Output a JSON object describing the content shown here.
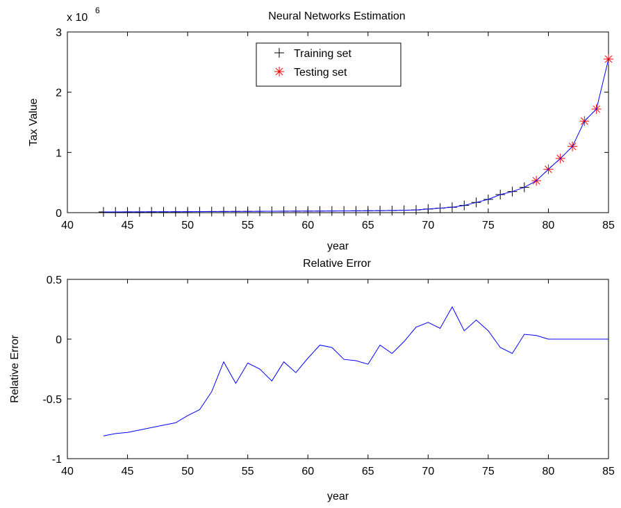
{
  "chart_data": [
    {
      "type": "line",
      "title": "Neural Networks Estimation",
      "xlabel": "year",
      "ylabel": "Tax Value",
      "y_exponent_label": "x 10",
      "y_exponent_power": "6",
      "xlim": [
        40,
        85
      ],
      "ylim": [
        0,
        3
      ],
      "xticks": [
        "40",
        "45",
        "50",
        "55",
        "60",
        "65",
        "70",
        "75",
        "80",
        "85"
      ],
      "yticks": [
        "0",
        "1",
        "2",
        "3"
      ],
      "legend": {
        "placement": "top-center",
        "entries": [
          "Training set",
          "Testing set"
        ]
      },
      "colors": {
        "line": "#0000ff",
        "training": "#000000",
        "testing": "#ff0000"
      },
      "series": [
        {
          "name": "Training set",
          "marker": "+",
          "x": [
            43,
            44,
            45,
            46,
            47,
            48,
            49,
            50,
            51,
            52,
            53,
            54,
            55,
            56,
            57,
            58,
            59,
            60,
            61,
            62,
            63,
            64,
            65,
            66,
            67,
            68,
            69,
            70,
            71,
            72,
            73,
            74,
            75,
            76,
            77,
            78
          ],
          "y": [
            0.012,
            0.012,
            0.013,
            0.013,
            0.014,
            0.014,
            0.015,
            0.016,
            0.017,
            0.018,
            0.019,
            0.02,
            0.021,
            0.022,
            0.023,
            0.024,
            0.025,
            0.026,
            0.027,
            0.028,
            0.029,
            0.03,
            0.031,
            0.033,
            0.036,
            0.04,
            0.045,
            0.06,
            0.075,
            0.09,
            0.12,
            0.17,
            0.22,
            0.3,
            0.35,
            0.42
          ]
        },
        {
          "name": "Testing set",
          "marker": "*",
          "x": [
            79,
            80,
            81,
            82,
            83,
            84,
            85
          ],
          "y": [
            0.53,
            0.72,
            0.9,
            1.1,
            1.52,
            1.72,
            2.55
          ]
        },
        {
          "name": "",
          "marker": "none",
          "x": [
            43,
            44,
            45,
            46,
            47,
            48,
            49,
            50,
            51,
            52,
            53,
            54,
            55,
            56,
            57,
            58,
            59,
            60,
            61,
            62,
            63,
            64,
            65,
            66,
            67,
            68,
            69,
            70,
            71,
            72,
            73,
            74,
            75,
            76,
            77,
            78,
            79,
            80,
            81,
            82,
            83,
            84,
            85
          ],
          "y": [
            0.012,
            0.012,
            0.013,
            0.013,
            0.014,
            0.014,
            0.015,
            0.016,
            0.017,
            0.018,
            0.019,
            0.02,
            0.021,
            0.022,
            0.023,
            0.024,
            0.025,
            0.026,
            0.027,
            0.028,
            0.029,
            0.03,
            0.031,
            0.033,
            0.036,
            0.04,
            0.045,
            0.06,
            0.075,
            0.09,
            0.12,
            0.17,
            0.22,
            0.3,
            0.35,
            0.42,
            0.53,
            0.72,
            0.9,
            1.1,
            1.52,
            1.72,
            2.55
          ]
        }
      ]
    },
    {
      "type": "line",
      "title": "Relative Error",
      "xlabel": "year",
      "ylabel": "Relative Error",
      "xlim": [
        40,
        85
      ],
      "ylim": [
        -1,
        0.5
      ],
      "xticks": [
        "40",
        "45",
        "50",
        "55",
        "60",
        "65",
        "70",
        "75",
        "80",
        "85"
      ],
      "yticks": [
        "-1",
        "-0.5",
        "0",
        "0.5"
      ],
      "colors": {
        "line": "#0000ff"
      },
      "series": [
        {
          "name": "",
          "x": [
            43,
            44,
            45,
            46,
            47,
            48,
            49,
            50,
            51,
            52,
            53,
            54,
            55,
            56,
            57,
            58,
            59,
            60,
            61,
            62,
            63,
            64,
            65,
            66,
            67,
            68,
            69,
            70,
            71,
            72,
            73,
            74,
            75,
            76,
            77,
            78,
            79,
            80,
            81,
            82,
            83,
            84,
            85
          ],
          "y": [
            -0.81,
            -0.79,
            -0.78,
            -0.76,
            -0.74,
            -0.72,
            -0.7,
            -0.64,
            -0.59,
            -0.44,
            -0.19,
            -0.37,
            -0.2,
            -0.25,
            -0.35,
            -0.19,
            -0.28,
            -0.16,
            -0.05,
            -0.07,
            -0.17,
            -0.18,
            -0.21,
            -0.05,
            -0.12,
            -0.02,
            0.1,
            0.14,
            0.09,
            0.27,
            0.07,
            0.16,
            0.07,
            -0.07,
            -0.12,
            0.04,
            0.03,
            0.0,
            0.0,
            0.0,
            0.0,
            0.0,
            0.0
          ]
        }
      ]
    }
  ]
}
